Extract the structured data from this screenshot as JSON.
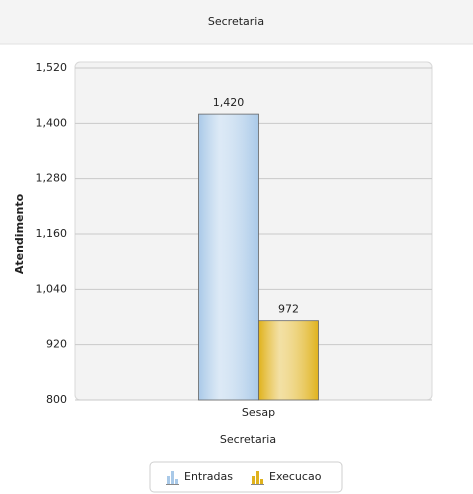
{
  "chart_data": {
    "type": "bar",
    "title": "Secretaria",
    "y_label": "Atendimento",
    "x_label": "Secretaria",
    "categories": [
      "Sesap"
    ],
    "series": [
      {
        "name": "Entradas",
        "color": "#a9c9e8",
        "values": [
          1420
        ],
        "value_labels": [
          "1,420"
        ]
      },
      {
        "name": "Execucao",
        "color": "#e0b21c",
        "values": [
          972
        ]
      }
    ],
    "ylim": [
      800,
      1520
    ],
    "yticks": [
      800,
      920,
      {
        "value": 1040,
        "label": "1,040"
      },
      {
        "value": 1160,
        "label": "1,160"
      },
      {
        "value": 1280,
        "label": "1,280"
      },
      {
        "value": 1400,
        "label": "1,400"
      },
      {
        "value": 1520,
        "label": "1,520"
      }
    ],
    "grid": true,
    "legend": "bottom"
  }
}
